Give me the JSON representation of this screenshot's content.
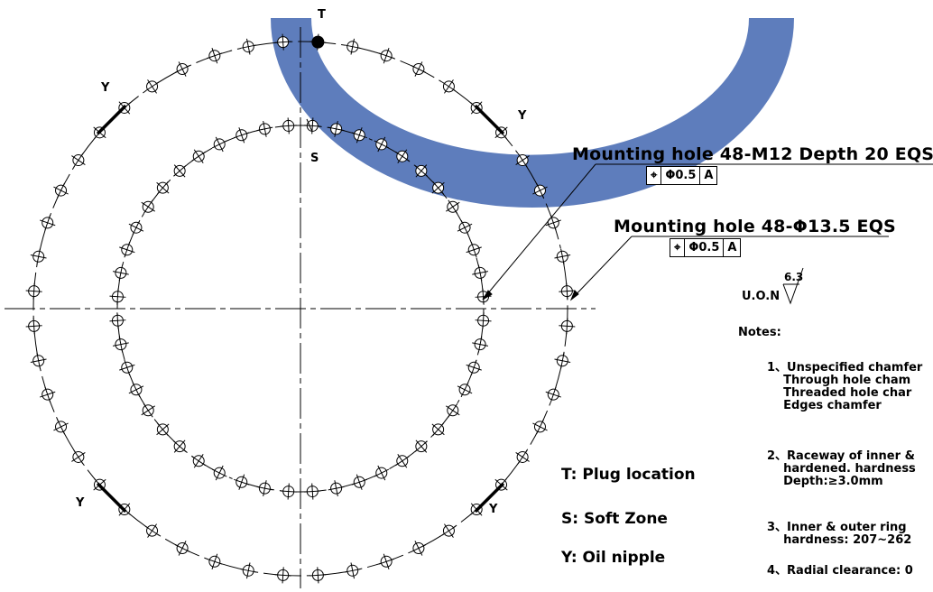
{
  "markers": {
    "plug": "T",
    "soft": "S",
    "nipple": "Y"
  },
  "callouts": {
    "outer_hole": "Mounting hole 48-M12 Depth 20 EQS",
    "inner_hole": "Mounting hole 48-Φ13.5 EQS"
  },
  "tolerance": {
    "symbol": "⌖",
    "value": "Φ0.5",
    "datum": "A"
  },
  "surface": {
    "label": "U.O.N",
    "roughness": "6.3"
  },
  "legend": {
    "t": "T: Plug location",
    "s": "S: Soft Zone",
    "y": "Y: Oil nipple"
  },
  "notes": {
    "title": "Notes:",
    "n1": [
      "1、Unspecified chamfer",
      "    Through hole cham",
      "    Threaded hole char",
      "    Edges chamfer"
    ],
    "n2": [
      "2、Raceway of inner &",
      "    hardened. hardness",
      "    Depth:≥3.0mm"
    ],
    "n3": [
      "3、Inner & outer ring",
      "    hardness: 207~262"
    ],
    "n4": [
      "4、Radial clearance: 0"
    ]
  },
  "colors": {
    "accent": "#4d6fb5",
    "line": "#000000"
  }
}
